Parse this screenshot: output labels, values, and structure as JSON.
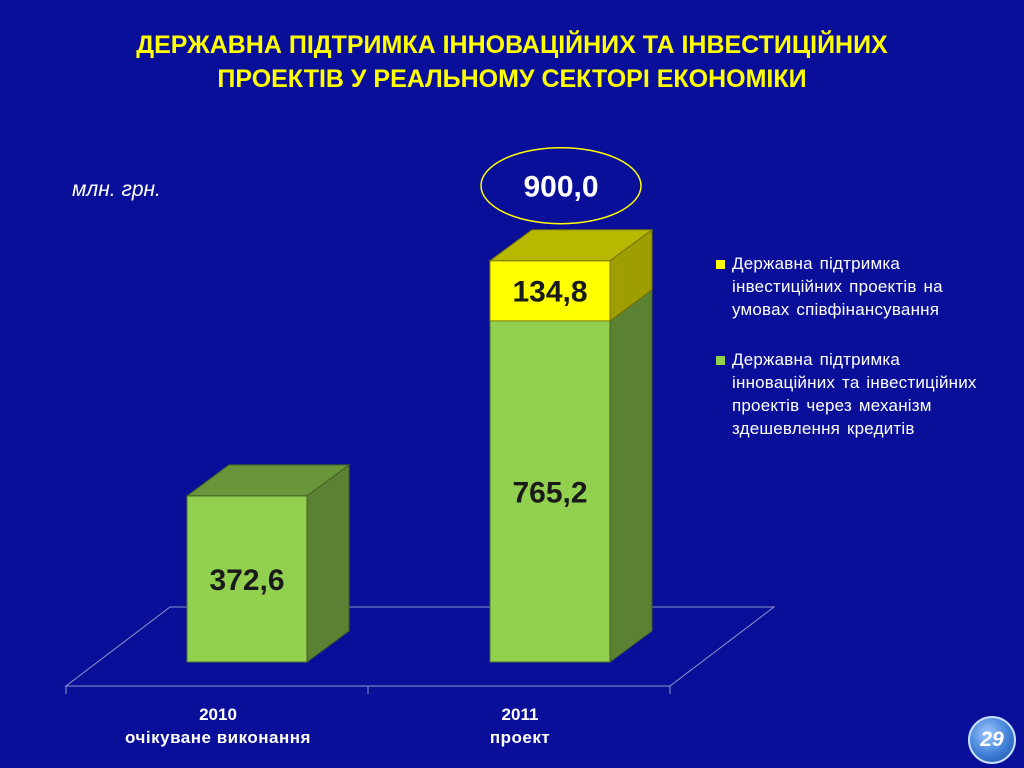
{
  "title_line1": "ДЕРЖАВНА ПІДТРИМКА ІННОВАЦІЙНИХ ТА ІНВЕСТИЦІЙНИХ",
  "title_line2": "ПРОЕКТІВ У РЕАЛЬНОМУ СЕКТОРІ ЕКОНОМІКИ",
  "unit_label": "млн. грн.",
  "page_number": "29",
  "colors": {
    "background": "#0a0f9a",
    "green": "#92d050",
    "yellow": "#ffff00",
    "title": "#ffff00"
  },
  "chart_data": {
    "type": "bar",
    "stacked": true,
    "three_d": true,
    "categories": [
      {
        "line1": "2010",
        "line2": "очікуване виконання"
      },
      {
        "line1": "2011",
        "line2": "проект"
      }
    ],
    "series": [
      {
        "name": "Державна підтримка інноваційних та інвестиційних проектів через механізм здешевлення кредитів",
        "color": "#92d050",
        "values": [
          372.6,
          765.2
        ],
        "labels": [
          "372,6",
          "765,2"
        ]
      },
      {
        "name": "Державна підтримка інвестиційних проектів на умовах співфінансування",
        "color": "#ffff00",
        "values": [
          null,
          134.8
        ],
        "labels": [
          "",
          "134,8"
        ]
      }
    ],
    "total_label": "900,0",
    "ylim": [
      0,
      900
    ],
    "legend_position": "right"
  }
}
